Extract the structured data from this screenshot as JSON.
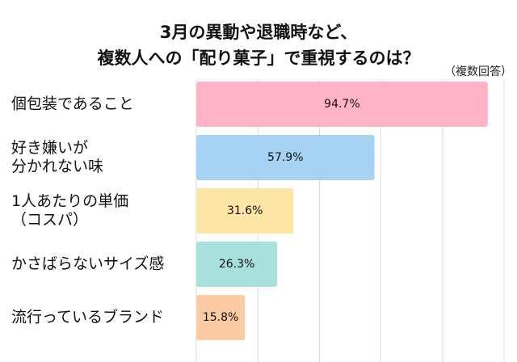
{
  "chart_data": {
    "type": "barh",
    "title": "3月の異動や退職時など、\n複数人への「配り菓子」で重視するのは？",
    "subtitle": "（複数回答）",
    "categories": [
      "個包装であること",
      "好き嫌いが\n分かれない味",
      "1人あたりの単価\n（コスパ）",
      "かさばらないサイズ感",
      "流行っているブランド"
    ],
    "values": [
      94.7,
      57.9,
      31.6,
      26.3,
      15.8
    ],
    "value_labels": [
      "94.7%",
      "57.9%",
      "31.6%",
      "26.3%",
      "15.8%"
    ],
    "colors": [
      "#ffb3c5",
      "#a6d2f4",
      "#fde5a6",
      "#a8e0dc",
      "#fbcba3"
    ],
    "xlim": [
      0,
      100
    ],
    "xticks": [
      0,
      20,
      40,
      60,
      80,
      100
    ],
    "grid": true
  }
}
